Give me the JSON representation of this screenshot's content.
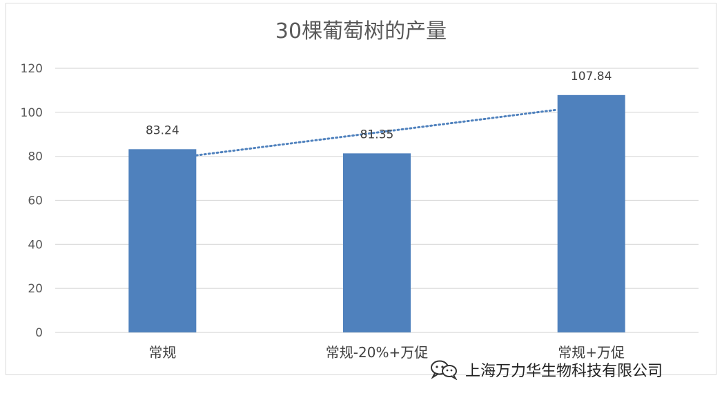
{
  "chart_data": {
    "type": "bar",
    "title": "30棵葡萄树的产量",
    "categories": [
      "常规",
      "常规-20%+万促",
      "常规+万促"
    ],
    "values": [
      83.24,
      81.35,
      107.84
    ],
    "data_labels": [
      "83.24",
      "81.35",
      "107.84"
    ],
    "ylim": [
      0,
      120
    ],
    "yticks": [
      0,
      20,
      40,
      60,
      80,
      100,
      120
    ],
    "grid": true,
    "legend": "none",
    "trendline": "linear, dotted",
    "colors": {
      "bar": "#4f81bd",
      "trendline": "#4f81bd",
      "grid": "#d9d9d9"
    }
  },
  "watermark": {
    "icon": "wechat-icon",
    "text": "上海万力华生物科技有限公司"
  }
}
